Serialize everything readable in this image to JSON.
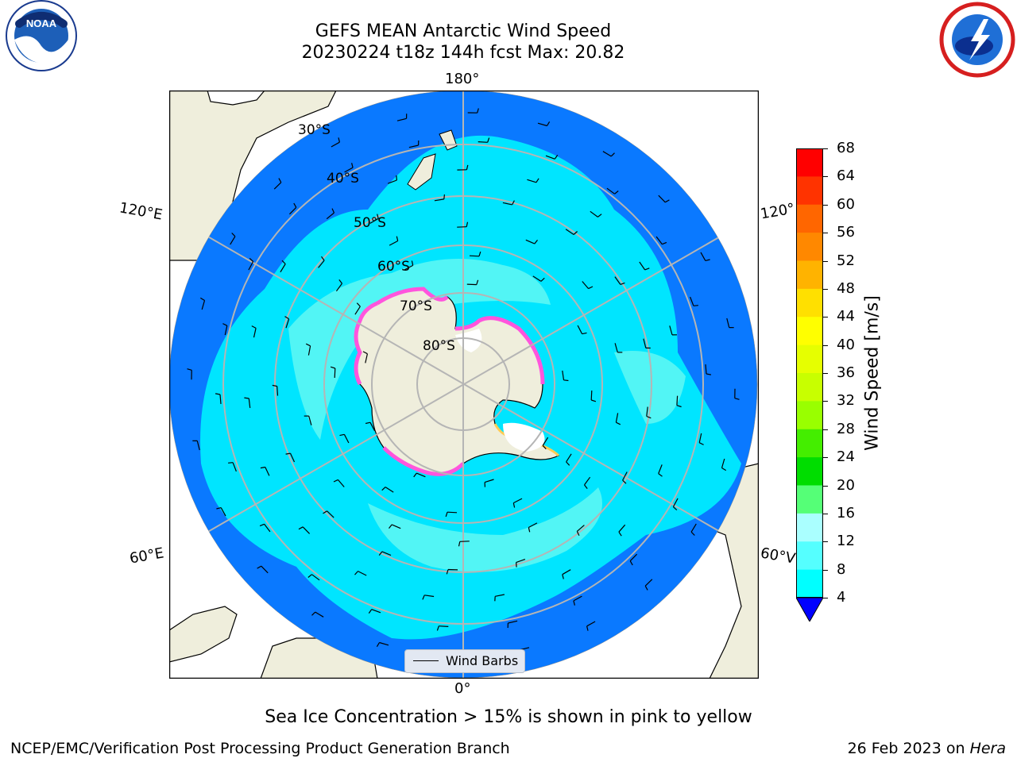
{
  "header": {
    "title_line1": "GEFS MEAN Antarctic Wind Speed",
    "title_line2": "20230224 t18z 144h fcst   Max: 20.82"
  },
  "logos": {
    "left": "noaa-logo",
    "right": "nws-logo",
    "noaa_text": "NOAA"
  },
  "map": {
    "projection": "south-polar-stereographic",
    "longitude_labels": {
      "top": "180°",
      "bottom": "0°",
      "left_upper": "120°E",
      "left_lower": "60°E",
      "right_upper": "120°",
      "right_lower": "60°V"
    },
    "latitude_labels": [
      "30°S",
      "40°S",
      "50°S",
      "60°S",
      "70°S",
      "80°S"
    ],
    "legend_label": "Wind Barbs",
    "colors": {
      "ocean_4_8": "#0a79ff",
      "ocean_8_12": "#00e5ff",
      "ocean_12_16": "#52f5f5",
      "land": "#efeedc",
      "sea_ice": "#ff55dd",
      "ice_shelf": "#ffffff",
      "grid": "#b5b5b5"
    }
  },
  "colorbar": {
    "label": "Wind Speed [m/s]",
    "ticks": [
      "68",
      "64",
      "60",
      "56",
      "52",
      "48",
      "44",
      "40",
      "36",
      "32",
      "28",
      "24",
      "20",
      "16",
      "12",
      "8",
      "4"
    ],
    "colors_top_to_bottom": [
      "#ff0000",
      "#ff3300",
      "#ff6600",
      "#ff8800",
      "#ffb300",
      "#ffe000",
      "#ffff00",
      "#e6ff00",
      "#c8ff00",
      "#99ff00",
      "#44ee00",
      "#00dd00",
      "#55ff77",
      "#aaffff",
      "#55ffff",
      "#00ffff",
      "#0080ff"
    ],
    "under_color": "#0000ff"
  },
  "notes": {
    "sea_ice": "Sea Ice Concentration > 15% is shown in pink to yellow"
  },
  "footer": {
    "left": "NCEP/EMC/Verification Post Processing Product Generation Branch",
    "right_date": "26 Feb 2023 on ",
    "right_host": "Hera"
  }
}
